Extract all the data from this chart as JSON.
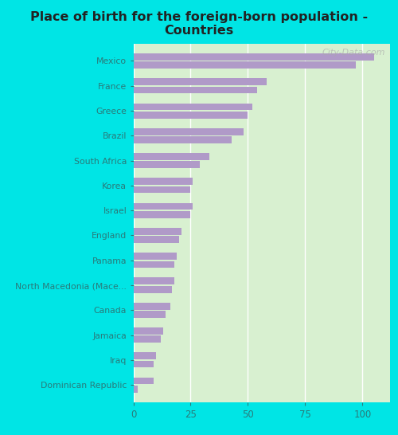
{
  "title": "Place of birth for the foreign-born population -\nCountries",
  "categories": [
    "Mexico",
    "France",
    "Greece",
    "Brazil",
    "South Africa",
    "Korea",
    "Israel",
    "England",
    "Panama",
    "North Macedonia (Mace...",
    "Canada",
    "Jamaica",
    "Iraq",
    "Dominican Republic"
  ],
  "values1": [
    105,
    58,
    52,
    48,
    33,
    26,
    26,
    21,
    19,
    18,
    16,
    13,
    10,
    9
  ],
  "values2": [
    97,
    54,
    50,
    43,
    29,
    25,
    25,
    20,
    18,
    17,
    14,
    12,
    9,
    2
  ],
  "bar_color": "#b09ac8",
  "background_color": "#d8f0d0",
  "outer_background": "#00e5e5",
  "xlim": [
    0,
    112
  ],
  "xticks": [
    0,
    25,
    50,
    75,
    100
  ],
  "watermark": "City-Data.com"
}
